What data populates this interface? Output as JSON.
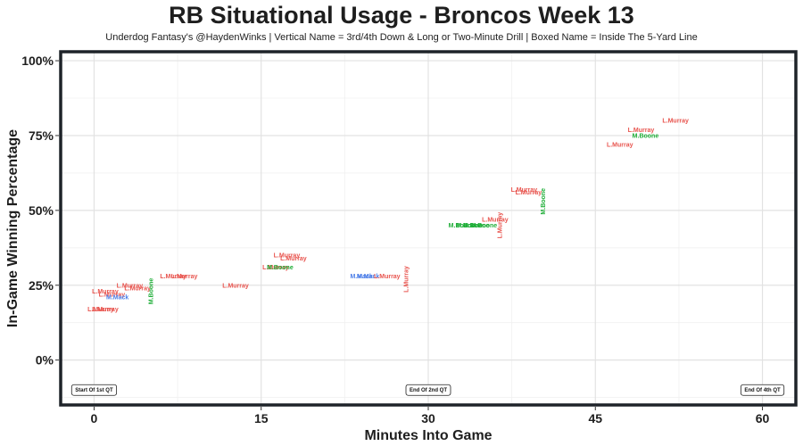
{
  "chart_data": {
    "type": "scatter",
    "title": "RB Situational Usage - Broncos Week 13",
    "subtitle": "Underdog Fantasy's @HaydenWinks | Vertical Name = 3rd/4th Down & Long or Two-Minute Drill | Boxed Name = Inside The 5-Yard Line",
    "xlabel": "Minutes Into Game",
    "ylabel": "In-Game Winning Percentage",
    "xlim": [
      -3,
      63
    ],
    "ylim": [
      -15,
      103
    ],
    "x_ticks": [
      0,
      15,
      30,
      45,
      60
    ],
    "y_ticks": [
      0,
      25,
      50,
      75,
      100
    ],
    "x_tick_labels": [
      "0",
      "15",
      "30",
      "45",
      "60"
    ],
    "y_tick_labels": [
      "0%",
      "25%",
      "50%",
      "75%",
      "100%"
    ],
    "grid": true,
    "colors": {
      "L.Murray": "#e8544e",
      "M.Boone": "#1fae38",
      "M.Mack": "#4d7fe8"
    },
    "points": [
      {
        "label": "L.Murray",
        "x": 0.6,
        "y": 17,
        "vertical": false
      },
      {
        "label": "L.Murray",
        "x": 1.0,
        "y": 17,
        "vertical": false
      },
      {
        "label": "L.Murray",
        "x": 1.0,
        "y": 23,
        "vertical": false
      },
      {
        "label": "L.Murray",
        "x": 1.6,
        "y": 22,
        "vertical": false
      },
      {
        "label": "M.Mack",
        "x": 2.1,
        "y": 21,
        "vertical": false
      },
      {
        "label": "L.Murray",
        "x": 3.2,
        "y": 25,
        "vertical": false
      },
      {
        "label": "L.Murray",
        "x": 3.9,
        "y": 24,
        "vertical": false
      },
      {
        "label": "M.Boone",
        "x": 5.1,
        "y": 23,
        "vertical": true
      },
      {
        "label": "L.Murray",
        "x": 7.1,
        "y": 28,
        "vertical": false
      },
      {
        "label": "L.Murray",
        "x": 8.1,
        "y": 28,
        "vertical": false
      },
      {
        "label": "L.Murray",
        "x": 12.7,
        "y": 25,
        "vertical": false
      },
      {
        "label": "L.Murray",
        "x": 16.3,
        "y": 31,
        "vertical": false
      },
      {
        "label": "M.Boone",
        "x": 16.7,
        "y": 31,
        "vertical": false
      },
      {
        "label": "L.Murray",
        "x": 17.3,
        "y": 35,
        "vertical": false
      },
      {
        "label": "L.Murray",
        "x": 17.9,
        "y": 34,
        "vertical": false
      },
      {
        "label": "M.Mack",
        "x": 24.0,
        "y": 28,
        "vertical": false
      },
      {
        "label": "M.Mack",
        "x": 24.6,
        "y": 28,
        "vertical": false
      },
      {
        "label": "L.Murray",
        "x": 26.3,
        "y": 28,
        "vertical": false
      },
      {
        "label": "L.Murray",
        "x": 28.0,
        "y": 27,
        "vertical": true
      },
      {
        "label": "M.Boone",
        "x": 33.0,
        "y": 45,
        "vertical": false
      },
      {
        "label": "M.Boone",
        "x": 33.7,
        "y": 45,
        "vertical": false
      },
      {
        "label": "M.Boone",
        "x": 34.3,
        "y": 45,
        "vertical": false
      },
      {
        "label": "M.Boone",
        "x": 35.0,
        "y": 45,
        "vertical": false
      },
      {
        "label": "L.Murray",
        "x": 36.0,
        "y": 47,
        "vertical": false
      },
      {
        "label": "L.Murray",
        "x": 36.4,
        "y": 45,
        "vertical": true
      },
      {
        "label": "L.Murray",
        "x": 38.6,
        "y": 57,
        "vertical": false
      },
      {
        "label": "L.Murray",
        "x": 39.0,
        "y": 56,
        "vertical": false
      },
      {
        "label": "M.Boone",
        "x": 40.3,
        "y": 53,
        "vertical": true
      },
      {
        "label": "L.Murray",
        "x": 47.2,
        "y": 72,
        "vertical": false
      },
      {
        "label": "L.Murray",
        "x": 49.1,
        "y": 77,
        "vertical": false
      },
      {
        "label": "M.Boone",
        "x": 49.5,
        "y": 75,
        "vertical": false
      },
      {
        "label": "L.Murray",
        "x": 52.2,
        "y": 80,
        "vertical": false
      }
    ],
    "annotations": [
      {
        "text": "Start Of 1st QT",
        "x": 0,
        "y": -10
      },
      {
        "text": "End Of 2nd QT",
        "x": 30,
        "y": -10
      },
      {
        "text": "End Of 4th QT",
        "x": 60,
        "y": -10
      }
    ]
  }
}
